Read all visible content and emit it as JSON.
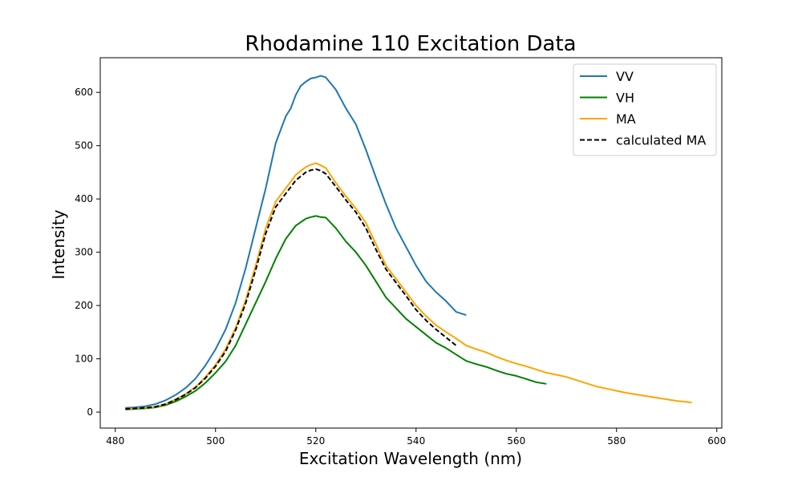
{
  "chart_data": {
    "type": "line",
    "title": "Rhodamine 110 Excitation Data",
    "xlabel": "Excitation Wavelength (nm)",
    "ylabel": "Intensity",
    "xlim": [
      477,
      601
    ],
    "ylim": [
      -30,
      665
    ],
    "xticks": [
      480,
      500,
      520,
      540,
      560,
      580,
      600
    ],
    "yticks": [
      0,
      100,
      200,
      300,
      400,
      500,
      600
    ],
    "grid": false,
    "legend_position": "top-right",
    "series": [
      {
        "name": "VV",
        "color": "#1f77b4",
        "dash": "solid",
        "x": [
          482,
          484,
          486,
          488,
          490,
          492,
          494,
          496,
          498,
          500,
          502,
          504,
          506,
          508,
          510,
          512,
          514,
          515,
          516,
          517,
          518,
          519,
          520,
          521,
          522,
          524,
          526,
          528,
          530,
          532,
          534,
          536,
          538,
          540,
          542,
          544,
          546,
          548,
          550
        ],
        "y": [
          8,
          9,
          11,
          15,
          22,
          32,
          45,
          63,
          88,
          118,
          155,
          205,
          270,
          345,
          420,
          505,
          555,
          570,
          595,
          612,
          620,
          626,
          628,
          631,
          628,
          605,
          570,
          540,
          492,
          440,
          390,
          345,
          310,
          275,
          245,
          225,
          208,
          188,
          182
        ]
      },
      {
        "name": "VH",
        "color": "#008000",
        "dash": "solid",
        "x": [
          482,
          484,
          486,
          488,
          490,
          492,
          494,
          496,
          498,
          500,
          502,
          504,
          506,
          508,
          510,
          512,
          514,
          516,
          518,
          519,
          520,
          521,
          522,
          524,
          526,
          528,
          530,
          532,
          534,
          536,
          538,
          540,
          542,
          544,
          546,
          548,
          550,
          552,
          554,
          556,
          558,
          560,
          562,
          564,
          566
        ],
        "y": [
          5,
          6,
          7,
          9,
          13,
          20,
          29,
          40,
          55,
          74,
          95,
          125,
          165,
          205,
          245,
          288,
          325,
          350,
          363,
          366,
          368,
          366,
          365,
          345,
          320,
          300,
          275,
          245,
          215,
          195,
          175,
          160,
          145,
          130,
          120,
          108,
          96,
          90,
          85,
          78,
          72,
          68,
          62,
          56,
          53
        ]
      },
      {
        "name": "MA",
        "color": "#ffa500",
        "dash": "solid",
        "x": [
          482,
          484,
          486,
          488,
          490,
          492,
          494,
          496,
          498,
          500,
          502,
          504,
          506,
          508,
          510,
          512,
          514,
          516,
          518,
          519,
          520,
          521,
          522,
          524,
          526,
          528,
          530,
          532,
          534,
          536,
          538,
          540,
          542,
          544,
          546,
          548,
          550,
          552,
          554,
          556,
          558,
          560,
          562,
          564,
          566,
          568,
          570,
          572,
          574,
          576,
          578,
          580,
          582,
          584,
          586,
          588,
          590,
          592,
          594,
          595
        ],
        "y": [
          6,
          7,
          8,
          10,
          15,
          24,
          34,
          47,
          66,
          89,
          118,
          158,
          210,
          275,
          345,
          395,
          420,
          445,
          460,
          464,
          467,
          463,
          458,
          430,
          405,
          382,
          355,
          315,
          275,
          250,
          225,
          200,
          180,
          163,
          150,
          138,
          125,
          118,
          112,
          104,
          97,
          91,
          86,
          80,
          74,
          70,
          66,
          60,
          54,
          48,
          44,
          40,
          36,
          33,
          30,
          27,
          24,
          21,
          19,
          18
        ]
      },
      {
        "name": "calculated MA",
        "color": "#000000",
        "dash": "dashed",
        "x": [
          482,
          484,
          486,
          488,
          490,
          492,
          494,
          496,
          498,
          500,
          502,
          504,
          506,
          508,
          510,
          512,
          514,
          516,
          518,
          519,
          520,
          521,
          522,
          524,
          526,
          528,
          530,
          532,
          534,
          536,
          538,
          540,
          542,
          544,
          546,
          548
        ],
        "y": [
          6,
          7,
          8,
          10,
          15,
          23,
          33,
          46,
          64,
          86,
          114,
          154,
          204,
          267,
          335,
          385,
          410,
          435,
          450,
          454,
          456,
          453,
          447,
          423,
          398,
          375,
          345,
          305,
          268,
          243,
          218,
          192,
          172,
          155,
          140,
          125
        ]
      }
    ]
  }
}
